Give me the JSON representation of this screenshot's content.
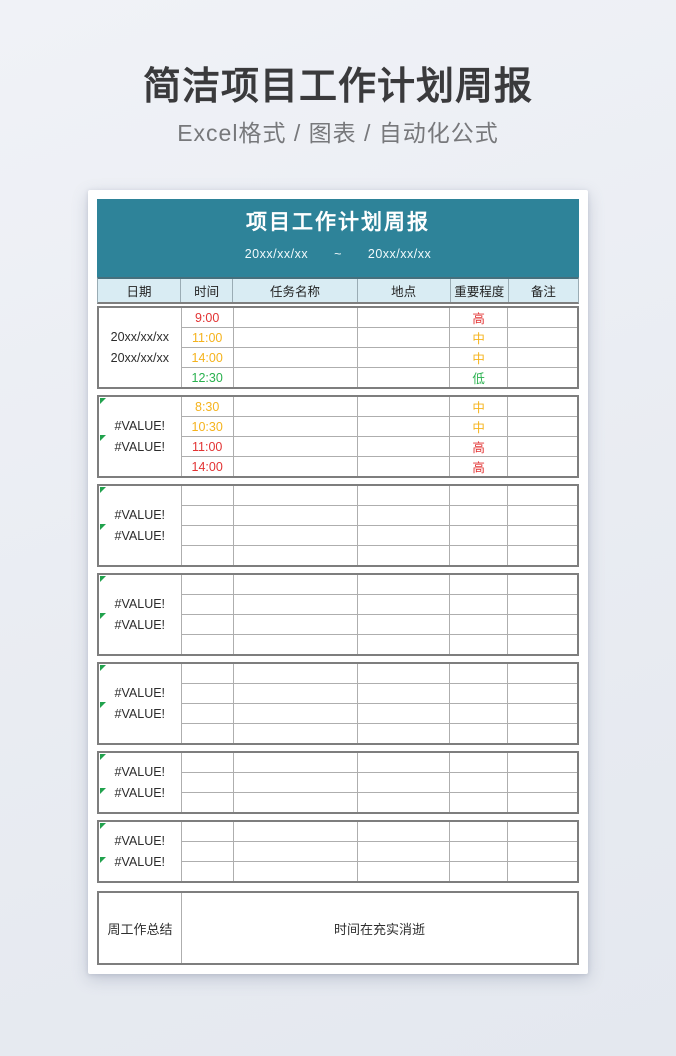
{
  "banner": {
    "title": "简洁项目工作计划周报",
    "subtitle": "Excel格式 / 图表 / 自动化公式"
  },
  "sheet": {
    "header": {
      "title": "项目工作计划周报",
      "date_start": "20xx/xx/xx",
      "date_separator": "~",
      "date_end": "20xx/xx/xx"
    },
    "columns": [
      "日期",
      "时间",
      "任务名称",
      "地点",
      "重要程度",
      "备注"
    ],
    "colors": {
      "teal": "#2e8399",
      "header_row_bg": "#d9ecf3",
      "red": "#e23333",
      "amber": "#f5b31d",
      "green": "#2ab14f",
      "error_indicator": "#21a24d"
    },
    "blocks": [
      {
        "date_lines": [
          "20xx/xx/xx",
          "20xx/xx/xx"
        ],
        "error": false,
        "rows": [
          {
            "time": "9:00",
            "time_color": "red",
            "task": "",
            "place": "",
            "importance": "高",
            "importance_color": "red",
            "note": ""
          },
          {
            "time": "11:00",
            "time_color": "amber",
            "task": "",
            "place": "",
            "importance": "中",
            "importance_color": "amber",
            "note": ""
          },
          {
            "time": "14:00",
            "time_color": "amber",
            "task": "",
            "place": "",
            "importance": "中",
            "importance_color": "amber",
            "note": ""
          },
          {
            "time": "12:30",
            "time_color": "green",
            "task": "",
            "place": "",
            "importance": "低",
            "importance_color": "green",
            "note": ""
          }
        ]
      },
      {
        "date_lines": [
          "#VALUE!",
          "#VALUE!"
        ],
        "error": true,
        "rows": [
          {
            "time": "8:30",
            "time_color": "amber",
            "task": "",
            "place": "",
            "importance": "中",
            "importance_color": "amber",
            "note": ""
          },
          {
            "time": "10:30",
            "time_color": "amber",
            "task": "",
            "place": "",
            "importance": "中",
            "importance_color": "amber",
            "note": ""
          },
          {
            "time": "11:00",
            "time_color": "red",
            "task": "",
            "place": "",
            "importance": "高",
            "importance_color": "red",
            "note": ""
          },
          {
            "time": "14:00",
            "time_color": "red",
            "task": "",
            "place": "",
            "importance": "高",
            "importance_color": "red",
            "note": ""
          }
        ]
      },
      {
        "date_lines": [
          "#VALUE!",
          "#VALUE!"
        ],
        "error": true,
        "rows": [
          {
            "time": "",
            "time_color": "",
            "task": "",
            "place": "",
            "importance": "",
            "importance_color": "",
            "note": ""
          },
          {
            "time": "",
            "time_color": "",
            "task": "",
            "place": "",
            "importance": "",
            "importance_color": "",
            "note": ""
          },
          {
            "time": "",
            "time_color": "",
            "task": "",
            "place": "",
            "importance": "",
            "importance_color": "",
            "note": ""
          },
          {
            "time": "",
            "time_color": "",
            "task": "",
            "place": "",
            "importance": "",
            "importance_color": "",
            "note": ""
          }
        ]
      },
      {
        "date_lines": [
          "#VALUE!",
          "#VALUE!"
        ],
        "error": true,
        "rows": [
          {
            "time": "",
            "time_color": "",
            "task": "",
            "place": "",
            "importance": "",
            "importance_color": "",
            "note": ""
          },
          {
            "time": "",
            "time_color": "",
            "task": "",
            "place": "",
            "importance": "",
            "importance_color": "",
            "note": ""
          },
          {
            "time": "",
            "time_color": "",
            "task": "",
            "place": "",
            "importance": "",
            "importance_color": "",
            "note": ""
          },
          {
            "time": "",
            "time_color": "",
            "task": "",
            "place": "",
            "importance": "",
            "importance_color": "",
            "note": ""
          }
        ]
      },
      {
        "date_lines": [
          "#VALUE!",
          "#VALUE!"
        ],
        "error": true,
        "rows": [
          {
            "time": "",
            "time_color": "",
            "task": "",
            "place": "",
            "importance": "",
            "importance_color": "",
            "note": ""
          },
          {
            "time": "",
            "time_color": "",
            "task": "",
            "place": "",
            "importance": "",
            "importance_color": "",
            "note": ""
          },
          {
            "time": "",
            "time_color": "",
            "task": "",
            "place": "",
            "importance": "",
            "importance_color": "",
            "note": ""
          },
          {
            "time": "",
            "time_color": "",
            "task": "",
            "place": "",
            "importance": "",
            "importance_color": "",
            "note": ""
          }
        ]
      },
      {
        "date_lines": [
          "#VALUE!",
          "#VALUE!"
        ],
        "error": true,
        "rows": [
          {
            "time": "",
            "time_color": "",
            "task": "",
            "place": "",
            "importance": "",
            "importance_color": "",
            "note": ""
          },
          {
            "time": "",
            "time_color": "",
            "task": "",
            "place": "",
            "importance": "",
            "importance_color": "",
            "note": ""
          },
          {
            "time": "",
            "time_color": "",
            "task": "",
            "place": "",
            "importance": "",
            "importance_color": "",
            "note": ""
          }
        ]
      },
      {
        "date_lines": [
          "#VALUE!",
          "#VALUE!"
        ],
        "error": true,
        "rows": [
          {
            "time": "",
            "time_color": "",
            "task": "",
            "place": "",
            "importance": "",
            "importance_color": "",
            "note": ""
          },
          {
            "time": "",
            "time_color": "",
            "task": "",
            "place": "",
            "importance": "",
            "importance_color": "",
            "note": ""
          },
          {
            "time": "",
            "time_color": "",
            "task": "",
            "place": "",
            "importance": "",
            "importance_color": "",
            "note": ""
          }
        ]
      }
    ],
    "summary": {
      "label": "周工作总结",
      "content": "时间在充实消逝"
    }
  }
}
